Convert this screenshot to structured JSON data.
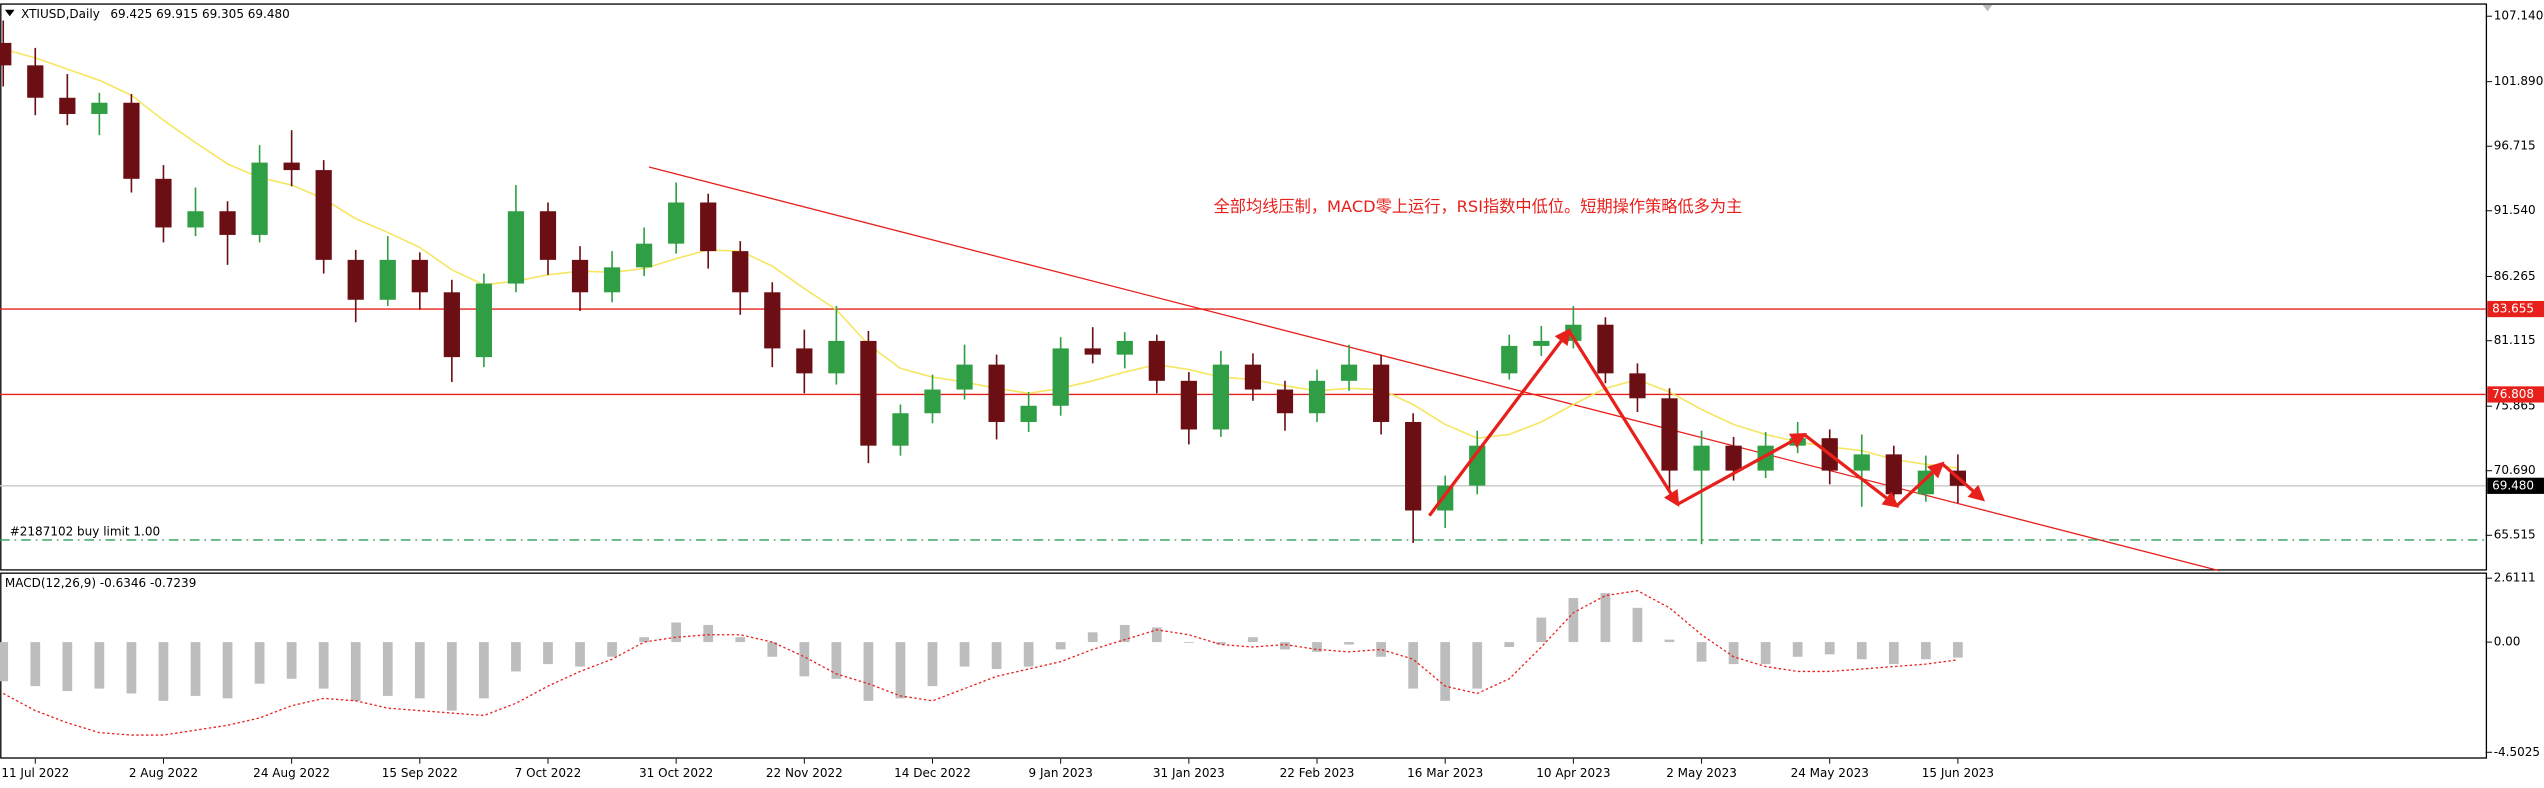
{
  "chart_data": [
    {
      "type": "candlestick",
      "title": "XTIUSD,Daily",
      "subtitle": "69.425 69.915 69.305 69.480",
      "categories": [
        null,
        "11 Jul 2022",
        null,
        null,
        null,
        "2 Aug 2022",
        null,
        null,
        null,
        "24 Aug 2022",
        null,
        null,
        null,
        "15 Sep 2022",
        null,
        null,
        null,
        "7 Oct 2022",
        null,
        null,
        null,
        "31 Oct 2022",
        null,
        null,
        null,
        "22 Nov 2022",
        null,
        null,
        null,
        "14 Dec 2022",
        null,
        null,
        null,
        "9 Jan 2023",
        null,
        null,
        null,
        "31 Jan 2023",
        null,
        null,
        null,
        "22 Feb 2023",
        null,
        null,
        null,
        "16 Mar 2023",
        null,
        null,
        null,
        "10 Apr 2023",
        null,
        null,
        null,
        "2 May 2023",
        null,
        null,
        null,
        "24 May 2023",
        null,
        null,
        null,
        "15 Jun 2023"
      ],
      "open": [
        105.0,
        103.2,
        100.6,
        99.3,
        100.2,
        94.1,
        90.2,
        91.5,
        89.6,
        95.4,
        94.8,
        87.6,
        84.4,
        87.6,
        85.0,
        79.8,
        85.7,
        91.5,
        87.6,
        85.0,
        87.0,
        88.9,
        92.2,
        88.3,
        85.0,
        80.5,
        78.5,
        81.1,
        72.7,
        75.3,
        77.2,
        79.2,
        74.6,
        75.9,
        80.5,
        80.0,
        81.1,
        77.9,
        74.0,
        79.2,
        77.2,
        75.3,
        77.9,
        79.2,
        74.6,
        67.5,
        69.5,
        78.5,
        80.7,
        81.1,
        82.4,
        78.5,
        76.5,
        70.7,
        72.7,
        70.7,
        72.7,
        73.3,
        70.7,
        72.0,
        68.8,
        70.7
      ],
      "high": [
        106.8,
        104.6,
        102.5,
        101.0,
        100.9,
        95.2,
        93.4,
        92.3,
        96.8,
        98.0,
        95.6,
        88.4,
        89.5,
        88.2,
        86.0,
        86.5,
        93.6,
        92.2,
        88.7,
        88.3,
        90.2,
        93.8,
        92.9,
        89.1,
        85.8,
        82.0,
        83.9,
        81.9,
        76.0,
        78.4,
        80.8,
        80.0,
        77.0,
        81.4,
        82.2,
        81.8,
        81.6,
        78.6,
        80.3,
        80.1,
        77.9,
        78.8,
        80.8,
        80.0,
        75.3,
        70.3,
        73.9,
        81.6,
        82.3,
        83.9,
        83.0,
        79.3,
        77.3,
        73.9,
        73.4,
        73.8,
        74.6,
        74.0,
        73.6,
        72.7,
        71.9,
        72.0
      ],
      "low": [
        101.5,
        99.2,
        98.4,
        97.6,
        93.0,
        89.0,
        89.5,
        87.2,
        89.0,
        93.5,
        86.5,
        82.6,
        83.9,
        83.6,
        77.8,
        79.0,
        85.0,
        86.4,
        83.5,
        84.2,
        86.3,
        88.1,
        86.9,
        83.2,
        79.0,
        76.9,
        77.6,
        71.3,
        71.9,
        74.5,
        76.4,
        73.2,
        73.8,
        75.1,
        79.3,
        78.9,
        76.9,
        72.8,
        73.4,
        76.3,
        73.9,
        74.6,
        77.1,
        73.6,
        64.9,
        66.1,
        68.8,
        78.0,
        79.9,
        80.5,
        77.7,
        75.4,
        69.0,
        64.8,
        69.9,
        70.1,
        72.1,
        69.6,
        67.8,
        67.9,
        68.2,
        68.1
      ],
      "close": [
        103.2,
        100.6,
        99.3,
        100.2,
        94.1,
        90.2,
        91.5,
        89.6,
        95.4,
        94.8,
        87.6,
        84.4,
        87.6,
        85.0,
        79.8,
        85.7,
        91.5,
        87.6,
        85.0,
        87.0,
        88.9,
        92.2,
        88.3,
        85.0,
        80.5,
        78.5,
        81.1,
        72.7,
        75.3,
        77.2,
        79.2,
        74.6,
        75.9,
        80.5,
        80.0,
        81.1,
        77.9,
        74.0,
        79.2,
        77.2,
        75.3,
        77.9,
        79.2,
        74.6,
        67.5,
        69.5,
        72.7,
        80.7,
        81.1,
        82.4,
        78.5,
        76.5,
        70.7,
        72.7,
        70.7,
        72.7,
        73.3,
        70.7,
        72.0,
        68.8,
        70.7,
        69.48
      ],
      "up_color": "#2f9e44",
      "down_color": "#6b0f14",
      "ma": {
        "color": "#f5e663",
        "values": [
          104.5,
          103.8,
          102.9,
          102.0,
          100.8,
          98.8,
          97.0,
          95.3,
          94.2,
          93.6,
          92.5,
          90.9,
          89.8,
          88.6,
          86.8,
          85.6,
          85.9,
          86.4,
          86.7,
          86.6,
          86.9,
          87.7,
          88.4,
          88.3,
          87.1,
          85.3,
          83.6,
          80.8,
          78.9,
          78.2,
          77.8,
          77.3,
          76.9,
          77.3,
          77.9,
          78.6,
          79.2,
          78.8,
          78.2,
          78.0,
          77.5,
          77.1,
          77.3,
          77.2,
          76.0,
          74.4,
          73.3,
          73.6,
          74.6,
          76.0,
          77.3,
          78.0,
          77.0,
          75.6,
          74.4,
          73.6,
          73.0,
          72.6,
          72.3,
          71.6,
          71.2,
          70.9
        ]
      },
      "ylim": [
        62.67,
        108.05
      ],
      "yticks": [
        {
          "value": 107.14,
          "label": "107.140"
        },
        {
          "value": 101.89,
          "label": "101.890"
        },
        96.715,
        {
          "value": 91.54,
          "label": "91.540"
        },
        86.265,
        81.115,
        75.865,
        {
          "value": 70.69,
          "label": "70.690"
        },
        65.515
      ],
      "hlines": [
        {
          "value": 83.655,
          "label": "83.655",
          "color": "#e8201c"
        },
        {
          "value": 76.808,
          "label": "76.808",
          "color": "#e8201c"
        }
      ],
      "current": {
        "value": 69.48,
        "label": "69.480",
        "color": "#c8c8c8"
      },
      "annotation": "全部均线压制，MACD零上运行，RSI指数中低位。短期操作策略低多为主",
      "order_label": "#2187102 buy limit 1.00"
    },
    {
      "type": "macd",
      "title": "MACD(12,26,9) -0.6346 -0.7239",
      "histogram": {
        "color": "#bdbdbd",
        "values": [
          -1.6,
          -1.8,
          -2.0,
          -1.9,
          -2.1,
          -2.4,
          -2.2,
          -2.3,
          -1.7,
          -1.5,
          -1.9,
          -2.4,
          -2.2,
          -2.3,
          -2.8,
          -2.3,
          -1.2,
          -0.9,
          -1.0,
          -0.6,
          0.2,
          0.8,
          0.7,
          0.2,
          -0.6,
          -1.4,
          -1.5,
          -2.4,
          -2.3,
          -1.8,
          -1.0,
          -1.1,
          -1.0,
          -0.3,
          0.4,
          0.7,
          0.6,
          0.0,
          -0.1,
          0.2,
          -0.3,
          -0.4,
          -0.1,
          -0.6,
          -1.9,
          -2.4,
          -1.9,
          -0.2,
          1.0,
          1.8,
          2.0,
          1.4,
          0.1,
          -0.8,
          -0.9,
          -0.9,
          -0.6,
          -0.5,
          -0.7,
          -0.9,
          -0.7,
          -0.6346
        ]
      },
      "signal": {
        "color": "#e8201c",
        "values": [
          -2.1,
          -2.8,
          -3.3,
          -3.7,
          -3.8,
          -3.8,
          -3.6,
          -3.4,
          -3.1,
          -2.6,
          -2.3,
          -2.4,
          -2.7,
          -2.8,
          -2.9,
          -3.0,
          -2.5,
          -1.8,
          -1.2,
          -0.7,
          0.0,
          0.2,
          0.3,
          0.3,
          0.0,
          -0.6,
          -1.3,
          -1.7,
          -2.2,
          -2.4,
          -1.9,
          -1.4,
          -1.1,
          -0.8,
          -0.3,
          0.1,
          0.5,
          0.3,
          -0.1,
          -0.2,
          -0.1,
          -0.3,
          -0.4,
          -0.3,
          -0.7,
          -1.8,
          -2.1,
          -1.5,
          -0.2,
          1.2,
          1.9,
          2.1,
          1.4,
          0.3,
          -0.6,
          -1.0,
          -1.2,
          -1.2,
          -1.1,
          -1.0,
          -0.9,
          -0.7239
        ]
      },
      "ylim": [
        -4.77,
        2.85
      ],
      "yticks": [
        2.6111,
        {
          "value": 0,
          "label": "0.00"
        },
        -4.5025
      ]
    }
  ]
}
